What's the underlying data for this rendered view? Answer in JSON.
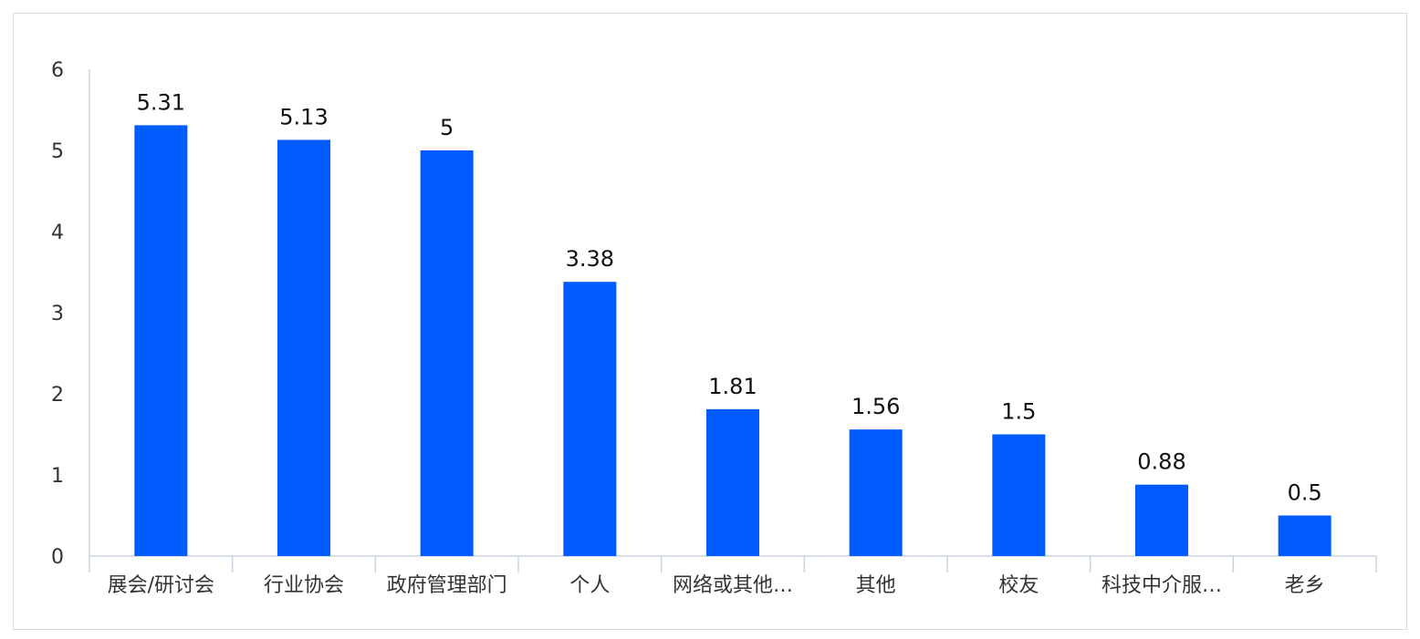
{
  "chart_data": {
    "type": "bar",
    "categories": [
      "展会/研讨会",
      "行业协会",
      "政府管理部门",
      "个人",
      "网络或其他…",
      "其他",
      "校友",
      "科技中介服…",
      "老乡"
    ],
    "values": [
      5.31,
      5.13,
      5,
      3.38,
      1.81,
      1.56,
      1.5,
      0.88,
      0.5
    ],
    "value_labels": [
      "5.31",
      "5.13",
      "5",
      "3.38",
      "1.81",
      "1.56",
      "1.5",
      "0.88",
      "0.5"
    ],
    "y_ticks": [
      "0",
      "1",
      "2",
      "3",
      "4",
      "5",
      "6"
    ],
    "ylim": [
      0,
      6
    ],
    "bar_color": "#005cff",
    "axis_color": "#c9d3e0",
    "grid": false,
    "legend": "none"
  }
}
